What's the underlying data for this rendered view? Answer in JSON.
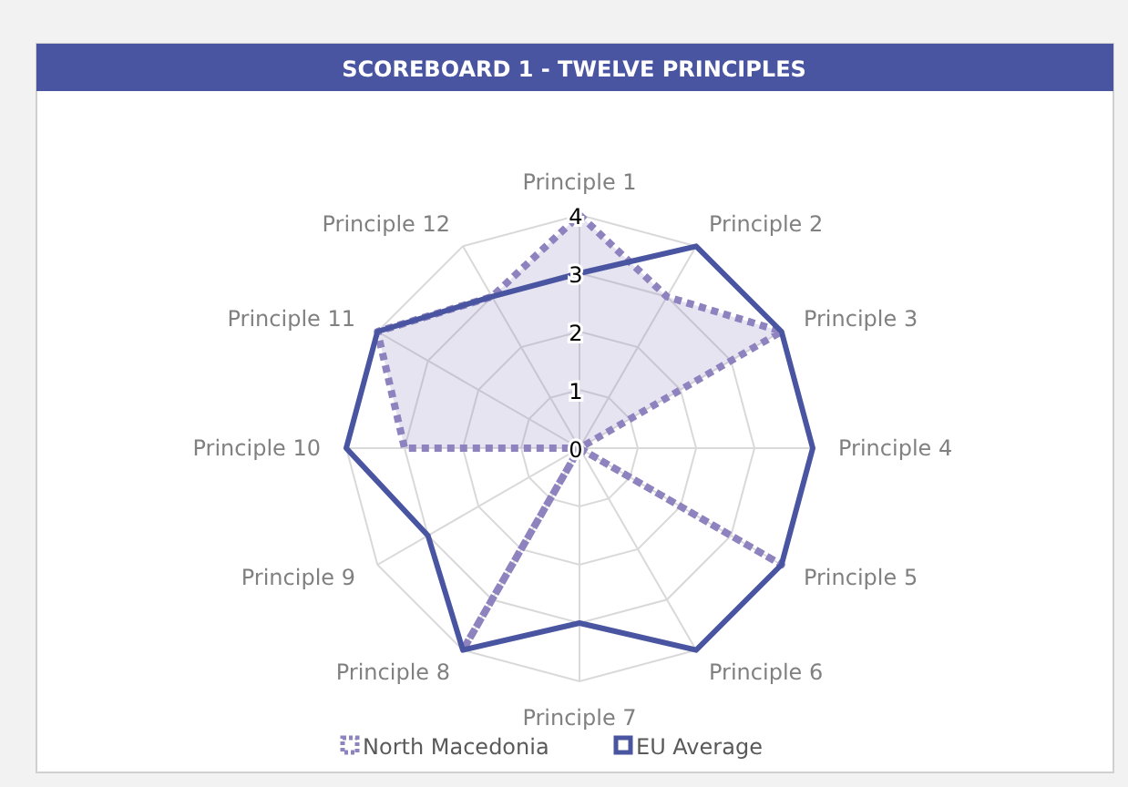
{
  "chart_data": {
    "type": "radar",
    "title": "SCOREBOARD 1 - TWELVE PRINCIPLES",
    "categories": [
      "Principle 1",
      "Principle 2",
      "Principle 3",
      "Principle 4",
      "Principle 5",
      "Principle 6",
      "Principle 7",
      "Principle 8",
      "Principle 9",
      "Principle 10",
      "Principle 11",
      "Principle 12"
    ],
    "ylim": [
      0,
      4
    ],
    "yticks": [
      0,
      1,
      2,
      3,
      4
    ],
    "grid": true,
    "legend": "bottom",
    "series": [
      {
        "name": "North Macedonia",
        "color": "#8e83bf",
        "line_style": "dotted",
        "values": [
          4,
          3,
          4,
          0,
          4,
          0,
          0,
          4,
          0,
          3,
          4,
          3
        ]
      },
      {
        "name": "EU Average",
        "color": "#4a55a2",
        "line_style": "solid",
        "values": [
          3,
          4,
          4,
          4,
          4,
          4,
          3,
          4,
          3,
          4,
          4,
          3
        ]
      }
    ]
  }
}
